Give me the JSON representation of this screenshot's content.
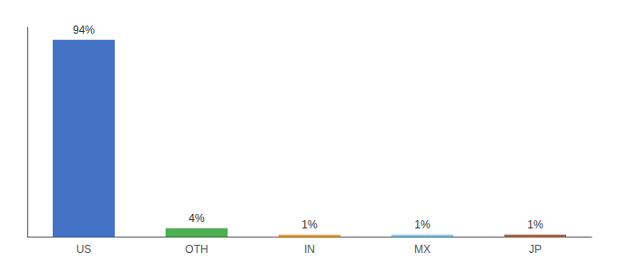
{
  "chart_data": {
    "type": "bar",
    "categories": [
      "US",
      "OTH",
      "IN",
      "MX",
      "JP"
    ],
    "values": [
      94,
      4,
      1,
      1,
      1
    ],
    "value_labels": [
      "94%",
      "4%",
      "1%",
      "1%",
      "1%"
    ],
    "colors": [
      "#4472C4",
      "#4CAF50",
      "#FFA726",
      "#81D4FA",
      "#C0603A"
    ],
    "ylim": [
      0,
      100
    ],
    "grid": false,
    "tick_labels": "x",
    "data_labels": true
  }
}
